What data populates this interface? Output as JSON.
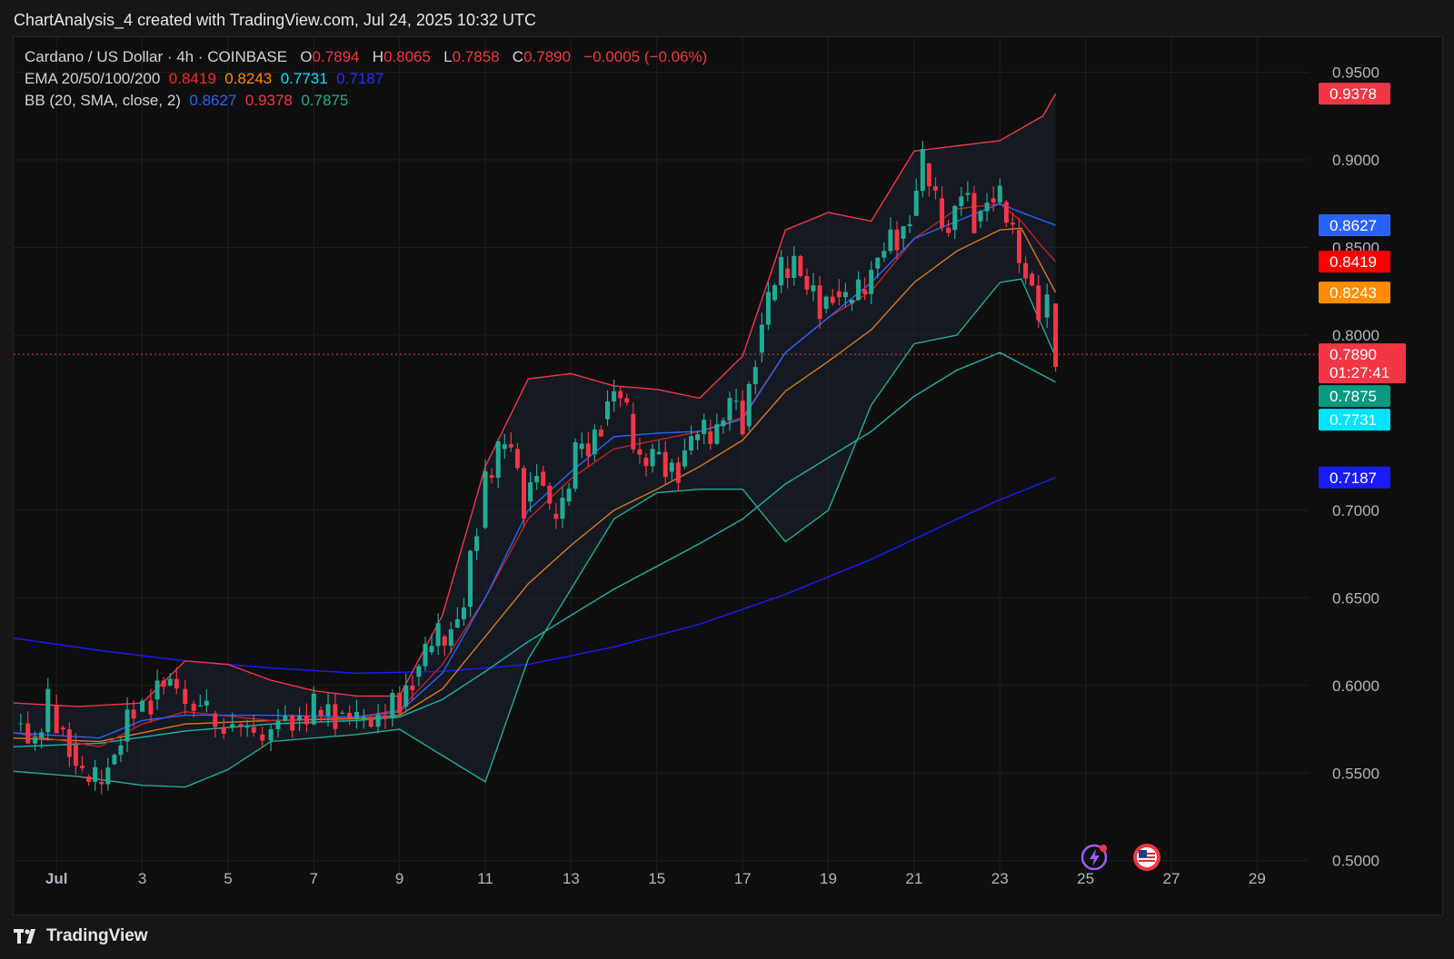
{
  "header": {
    "title": "ChartAnalysis_4 created with TradingView.com, Jul 24, 2025 10:32 UTC"
  },
  "legend": {
    "symbol": "Cardano / US Dollar · 4h · COINBASE",
    "open_label": "O",
    "open": "0.7894",
    "high_label": "H",
    "high": "0.8065",
    "low_label": "L",
    "low": "0.7858",
    "close_label": "C",
    "close": "0.7890",
    "change": "−0.0005 (−0.06%)",
    "ema_label": "EMA 20/50/100/200",
    "ema20": "0.8419",
    "ema50": "0.8243",
    "ema100": "0.7731",
    "ema200": "0.7187",
    "bb_label": "BB (20, SMA, close, 2)",
    "bb_basis": "0.8627",
    "bb_upper": "0.9378",
    "bb_lower": "0.7875"
  },
  "countdown": "01:27:41",
  "footer": {
    "brand": "TradingView"
  },
  "icons": [
    "tv-logo-icon",
    "lightning-alert-icon",
    "us-flag-icon"
  ],
  "colors": {
    "up": "#22ab94",
    "down": "#f23645",
    "ema20": "#ff0000",
    "ema50": "#ff8c00",
    "ema100": "#00e5ff",
    "ema200": "#1a1aff",
    "bb_basis": "#2962ff",
    "bb_upper": "#f23645",
    "bb_lower": "#22ab94"
  },
  "chart_data": {
    "type": "line",
    "subtype": "candlestick with EMA and Bollinger Bands",
    "symbol": "ADA/USD",
    "interval": "4h",
    "y_axis": {
      "ylim": [
        0.49,
        0.97
      ],
      "ticks": [
        "0.5000",
        "0.5500",
        "0.6000",
        "0.6500",
        "0.7000",
        "0.8000",
        "0.8500",
        "0.9000",
        "0.9500"
      ]
    },
    "x_axis": {
      "ticks": [
        {
          "label": "Jul",
          "day": 1
        },
        {
          "label": "3",
          "day": 3
        },
        {
          "label": "5",
          "day": 5
        },
        {
          "label": "7",
          "day": 7
        },
        {
          "label": "9",
          "day": 9
        },
        {
          "label": "11",
          "day": 11
        },
        {
          "label": "13",
          "day": 13
        },
        {
          "label": "15",
          "day": 15
        },
        {
          "label": "17",
          "day": 17
        },
        {
          "label": "19",
          "day": 19
        },
        {
          "label": "21",
          "day": 21
        },
        {
          "label": "23",
          "day": 23
        },
        {
          "label": "25",
          "day": 25
        },
        {
          "label": "27",
          "day": 27
        },
        {
          "label": "29",
          "day": 29
        }
      ],
      "xlim_days": [
        0.0,
        30.2
      ]
    },
    "price_tags": [
      {
        "value": 0.9378,
        "label": "0.9378",
        "color": "#f23645"
      },
      {
        "value": 0.8627,
        "label": "0.8627",
        "color": "#2962ff"
      },
      {
        "value": 0.8419,
        "label": "0.8419",
        "color": "#ff0000"
      },
      {
        "value": 0.8243,
        "label": "0.8243",
        "color": "#ff8c00"
      },
      {
        "value": 0.789,
        "label": "0.7890",
        "color": "#f23645",
        "current": true
      },
      {
        "value": 0.7875,
        "label": "0.7875",
        "color": "#089981"
      },
      {
        "value": 0.7731,
        "label": "0.7731",
        "color": "#00e5ff"
      },
      {
        "value": 0.7187,
        "label": "0.7187",
        "color": "#1a1aff"
      }
    ],
    "close_series": [
      [
        0.0,
        0.578
      ],
      [
        0.5,
        0.57
      ],
      [
        0.8,
        0.589
      ],
      [
        1.0,
        0.576
      ],
      [
        1.3,
        0.566
      ],
      [
        1.6,
        0.548
      ],
      [
        1.9,
        0.545
      ],
      [
        2.2,
        0.555
      ],
      [
        2.5,
        0.568
      ],
      [
        2.8,
        0.585
      ],
      [
        3.2,
        0.592
      ],
      [
        3.5,
        0.6
      ],
      [
        3.8,
        0.598
      ],
      [
        4.2,
        0.588
      ],
      [
        4.5,
        0.584
      ],
      [
        4.9,
        0.576
      ],
      [
        5.3,
        0.576
      ],
      [
        5.6,
        0.572
      ],
      [
        6.0,
        0.575
      ],
      [
        6.5,
        0.58
      ],
      [
        7.0,
        0.586
      ],
      [
        7.5,
        0.584
      ],
      [
        8.0,
        0.58
      ],
      [
        8.5,
        0.583
      ],
      [
        9.0,
        0.588
      ],
      [
        9.3,
        0.605
      ],
      [
        9.6,
        0.619
      ],
      [
        9.9,
        0.628
      ],
      [
        10.2,
        0.633
      ],
      [
        10.5,
        0.645
      ],
      [
        10.8,
        0.69
      ],
      [
        11.0,
        0.72
      ],
      [
        11.3,
        0.735
      ],
      [
        11.6,
        0.735
      ],
      [
        11.9,
        0.705
      ],
      [
        12.2,
        0.722
      ],
      [
        12.5,
        0.698
      ],
      [
        12.8,
        0.705
      ],
      [
        13.1,
        0.735
      ],
      [
        13.4,
        0.732
      ],
      [
        13.7,
        0.752
      ],
      [
        14.0,
        0.768
      ],
      [
        14.3,
        0.755
      ],
      [
        14.6,
        0.73
      ],
      [
        14.9,
        0.732
      ],
      [
        15.2,
        0.722
      ],
      [
        15.5,
        0.725
      ],
      [
        15.8,
        0.74
      ],
      [
        16.1,
        0.745
      ],
      [
        16.4,
        0.748
      ],
      [
        16.7,
        0.762
      ],
      [
        17.0,
        0.748
      ],
      [
        17.3,
        0.79
      ],
      [
        17.6,
        0.82
      ],
      [
        17.9,
        0.838
      ],
      [
        18.2,
        0.845
      ],
      [
        18.5,
        0.825
      ],
      [
        18.8,
        0.815
      ],
      [
        19.1,
        0.825
      ],
      [
        19.4,
        0.818
      ],
      [
        19.7,
        0.826
      ],
      [
        20.0,
        0.838
      ],
      [
        20.3,
        0.848
      ],
      [
        20.6,
        0.855
      ],
      [
        20.9,
        0.868
      ],
      [
        21.2,
        0.898
      ],
      [
        21.5,
        0.878
      ],
      [
        21.8,
        0.86
      ],
      [
        22.1,
        0.88
      ],
      [
        22.4,
        0.865
      ],
      [
        22.7,
        0.878
      ],
      [
        23.0,
        0.876
      ],
      [
        23.3,
        0.86
      ],
      [
        23.6,
        0.835
      ],
      [
        23.9,
        0.81
      ],
      [
        24.1,
        0.818
      ],
      [
        24.3,
        0.789
      ]
    ],
    "ema20": [
      [
        0.0,
        0.573
      ],
      [
        2.0,
        0.565
      ],
      [
        3.0,
        0.578
      ],
      [
        4.0,
        0.585
      ],
      [
        6.0,
        0.58
      ],
      [
        8.0,
        0.582
      ],
      [
        9.0,
        0.586
      ],
      [
        10.0,
        0.612
      ],
      [
        11.0,
        0.65
      ],
      [
        12.0,
        0.695
      ],
      [
        13.0,
        0.718
      ],
      [
        14.0,
        0.735
      ],
      [
        15.0,
        0.74
      ],
      [
        16.0,
        0.745
      ],
      [
        17.0,
        0.753
      ],
      [
        18.0,
        0.79
      ],
      [
        19.0,
        0.81
      ],
      [
        20.0,
        0.825
      ],
      [
        21.0,
        0.855
      ],
      [
        22.0,
        0.872
      ],
      [
        23.0,
        0.875
      ],
      [
        23.5,
        0.865
      ],
      [
        24.0,
        0.85
      ],
      [
        24.3,
        0.8419
      ]
    ],
    "ema50": [
      [
        0.0,
        0.57
      ],
      [
        2.0,
        0.568
      ],
      [
        4.0,
        0.578
      ],
      [
        6.0,
        0.58
      ],
      [
        8.0,
        0.581
      ],
      [
        9.0,
        0.583
      ],
      [
        10.0,
        0.598
      ],
      [
        11.0,
        0.628
      ],
      [
        12.0,
        0.658
      ],
      [
        13.0,
        0.68
      ],
      [
        14.0,
        0.7
      ],
      [
        15.0,
        0.712
      ],
      [
        16.0,
        0.725
      ],
      [
        17.0,
        0.74
      ],
      [
        18.0,
        0.768
      ],
      [
        19.0,
        0.785
      ],
      [
        20.0,
        0.803
      ],
      [
        21.0,
        0.83
      ],
      [
        22.0,
        0.848
      ],
      [
        23.0,
        0.86
      ],
      [
        23.5,
        0.861
      ],
      [
        24.3,
        0.8243
      ]
    ],
    "ema100": [
      [
        0.0,
        0.565
      ],
      [
        2.0,
        0.567
      ],
      [
        4.0,
        0.574
      ],
      [
        6.0,
        0.578
      ],
      [
        8.0,
        0.58
      ],
      [
        9.0,
        0.582
      ],
      [
        10.0,
        0.592
      ],
      [
        11.0,
        0.608
      ],
      [
        12.0,
        0.625
      ],
      [
        13.0,
        0.64
      ],
      [
        14.0,
        0.655
      ],
      [
        15.0,
        0.668
      ],
      [
        16.0,
        0.681
      ],
      [
        17.0,
        0.695
      ],
      [
        18.0,
        0.715
      ],
      [
        19.0,
        0.73
      ],
      [
        20.0,
        0.745
      ],
      [
        21.0,
        0.765
      ],
      [
        22.0,
        0.78
      ],
      [
        23.0,
        0.79
      ],
      [
        24.3,
        0.7731
      ]
    ],
    "ema200": [
      [
        0.0,
        0.627
      ],
      [
        2.0,
        0.62
      ],
      [
        4.0,
        0.614
      ],
      [
        6.0,
        0.61
      ],
      [
        8.0,
        0.607
      ],
      [
        10.0,
        0.608
      ],
      [
        12.0,
        0.612
      ],
      [
        14.0,
        0.622
      ],
      [
        16.0,
        0.635
      ],
      [
        18.0,
        0.652
      ],
      [
        20.0,
        0.672
      ],
      [
        22.0,
        0.695
      ],
      [
        23.0,
        0.706
      ],
      [
        24.3,
        0.7187
      ]
    ],
    "bb_upper": [
      [
        0.0,
        0.59
      ],
      [
        1.5,
        0.588
      ],
      [
        3.0,
        0.59
      ],
      [
        4.0,
        0.614
      ],
      [
        5.0,
        0.612
      ],
      [
        6.0,
        0.603
      ],
      [
        7.0,
        0.597
      ],
      [
        8.0,
        0.594
      ],
      [
        9.0,
        0.594
      ],
      [
        10.0,
        0.64
      ],
      [
        11.0,
        0.725
      ],
      [
        12.0,
        0.775
      ],
      [
        13.0,
        0.778
      ],
      [
        14.0,
        0.771
      ],
      [
        15.0,
        0.769
      ],
      [
        16.0,
        0.764
      ],
      [
        17.0,
        0.788
      ],
      [
        18.0,
        0.86
      ],
      [
        19.0,
        0.87
      ],
      [
        20.0,
        0.865
      ],
      [
        21.0,
        0.905
      ],
      [
        22.0,
        0.908
      ],
      [
        23.0,
        0.911
      ],
      [
        24.0,
        0.925
      ],
      [
        24.3,
        0.9378
      ]
    ],
    "bb_basis": [
      [
        0.0,
        0.573
      ],
      [
        2.0,
        0.57
      ],
      [
        3.0,
        0.58
      ],
      [
        4.0,
        0.583
      ],
      [
        6.0,
        0.583
      ],
      [
        8.0,
        0.582
      ],
      [
        9.0,
        0.585
      ],
      [
        10.0,
        0.607
      ],
      [
        11.0,
        0.65
      ],
      [
        12.0,
        0.7
      ],
      [
        13.0,
        0.722
      ],
      [
        14.0,
        0.742
      ],
      [
        15.0,
        0.744
      ],
      [
        16.0,
        0.745
      ],
      [
        17.0,
        0.752
      ],
      [
        18.0,
        0.79
      ],
      [
        19.0,
        0.81
      ],
      [
        20.0,
        0.83
      ],
      [
        21.0,
        0.855
      ],
      [
        22.0,
        0.865
      ],
      [
        23.0,
        0.875
      ],
      [
        23.5,
        0.87
      ],
      [
        24.3,
        0.8627
      ]
    ],
    "bb_lower": [
      [
        0.0,
        0.551
      ],
      [
        1.5,
        0.548
      ],
      [
        3.0,
        0.543
      ],
      [
        4.0,
        0.542
      ],
      [
        5.0,
        0.552
      ],
      [
        6.0,
        0.568
      ],
      [
        7.0,
        0.57
      ],
      [
        8.0,
        0.572
      ],
      [
        9.0,
        0.575
      ],
      [
        10.0,
        0.56
      ],
      [
        11.0,
        0.545
      ],
      [
        12.0,
        0.615
      ],
      [
        13.0,
        0.655
      ],
      [
        14.0,
        0.695
      ],
      [
        15.0,
        0.71
      ],
      [
        16.0,
        0.712
      ],
      [
        17.0,
        0.712
      ],
      [
        18.0,
        0.682
      ],
      [
        19.0,
        0.7
      ],
      [
        20.0,
        0.76
      ],
      [
        21.0,
        0.795
      ],
      [
        22.0,
        0.8
      ],
      [
        23.0,
        0.83
      ],
      [
        23.5,
        0.832
      ],
      [
        24.3,
        0.7875
      ]
    ],
    "last_candle": {
      "open": 0.7894,
      "high": 0.8065,
      "low": 0.7858,
      "close": 0.789
    },
    "grid": true,
    "legend_position": "top-left"
  }
}
